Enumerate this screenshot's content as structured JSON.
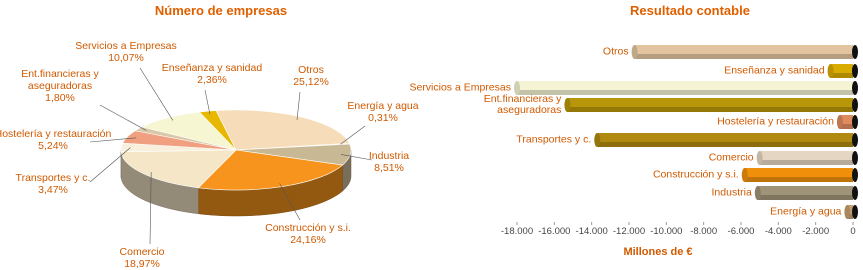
{
  "chart_data": [
    {
      "type": "pie",
      "title": "Número de empresas",
      "categories": [
        "Otros",
        "Energía y agua",
        "Industria",
        "Construcción y s.i.",
        "Comercio",
        "Transportes y c.",
        "Hostelería y restauración",
        "Ent.financieras y aseguradoras",
        "Servicios a Empresas",
        "Enseñanza y sanidad"
      ],
      "values": [
        25.12,
        0.31,
        8.51,
        24.16,
        18.97,
        3.47,
        5.24,
        1.8,
        10.07,
        2.36
      ],
      "value_labels": [
        "25,12%",
        "0,31%",
        "8,51%",
        "24,16%",
        "18,97%",
        "3,47%",
        "5,24%",
        "1,80%",
        "10,07%",
        "2,36%"
      ],
      "colors": [
        "#f6dcb8",
        "#d8b888",
        "#c9b894",
        "#f7941d",
        "#f5e6c8",
        "#f8f0dc",
        "#f0a080",
        "#d8c8a8",
        "#f6f6d2",
        "#e8b800"
      ]
    },
    {
      "type": "bar",
      "orientation": "horizontal",
      "title": "Resultado contable",
      "x_label": "Millones de €",
      "categories": [
        "Otros",
        "Enseñanza y sanidad",
        "Servicios a Empresas",
        "Ent.financieras y aseguradoras",
        "Hostelería y restauración",
        "Transportes y c.",
        "Comercio",
        "Construcción y s.i.",
        "Industria",
        "Energía y agua"
      ],
      "values": [
        -11700,
        -1200,
        -18000,
        -15300,
        -700,
        -13700,
        -5000,
        -5800,
        -5100,
        -300
      ],
      "colors": [
        "#e2c4a0",
        "#d8ac00",
        "#f4f4d4",
        "#b8960a",
        "#e08a60",
        "#b08a10",
        "#e4d6c2",
        "#f0900a",
        "#a09478",
        "#c8a070"
      ],
      "xlim": [
        -18000,
        0
      ],
      "xticks": [
        {
          "value": -18000,
          "label": "-18.000"
        },
        {
          "value": -16000,
          "label": "-16.000"
        },
        {
          "value": -14000,
          "label": "-14.000"
        },
        {
          "value": -12000,
          "label": "-12.000"
        },
        {
          "value": -10000,
          "label": "-10.000"
        },
        {
          "value": -8000,
          "label": "-8.000"
        },
        {
          "value": -6000,
          "label": "-6.000"
        },
        {
          "value": -4000,
          "label": "-4.000"
        },
        {
          "value": -2000,
          "label": "-2.000"
        },
        0
      ]
    }
  ]
}
